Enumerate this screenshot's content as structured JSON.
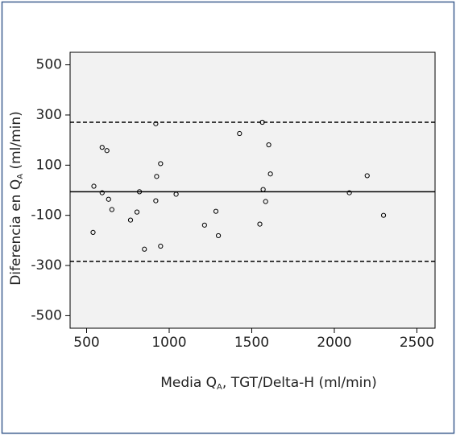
{
  "chart_data": {
    "type": "scatter",
    "xlabel": [
      "Media Q",
      "A",
      ", TGT/Delta-H (ml/min)"
    ],
    "ylabel": [
      "Diferencia en Q",
      "A",
      " (ml/min)"
    ],
    "x": [
      539,
      544,
      594,
      594,
      623,
      633,
      653,
      766,
      805,
      820,
      850,
      919,
      919,
      924,
      948,
      948,
      1042,
      1214,
      1283,
      1298,
      1426,
      1549,
      1564,
      1569,
      1584,
      1603,
      1613,
      2091,
      2199,
      2298
    ],
    "values": [
      -168,
      16,
      171,
      -10,
      158,
      -36,
      -77,
      -119,
      -87,
      -6,
      -235,
      265,
      -42,
      55,
      106,
      -223,
      -16,
      -139,
      -84,
      -181,
      226,
      -135,
      271,
      3,
      -45,
      181,
      65,
      -10,
      58,
      -100
    ],
    "color": "#000000",
    "xlim": [
      400,
      2610
    ],
    "xticks": [
      500,
      1000,
      1500,
      2000,
      2500
    ],
    "ylim": [
      -550,
      550
    ],
    "yticks": [
      500,
      300,
      100,
      -100,
      -300,
      -500
    ],
    "reference_lines": [
      {
        "value": 271,
        "style": "dashed"
      },
      {
        "value": -6,
        "style": "solid"
      },
      {
        "value": -284,
        "style": "dashed"
      }
    ],
    "grid": false
  }
}
